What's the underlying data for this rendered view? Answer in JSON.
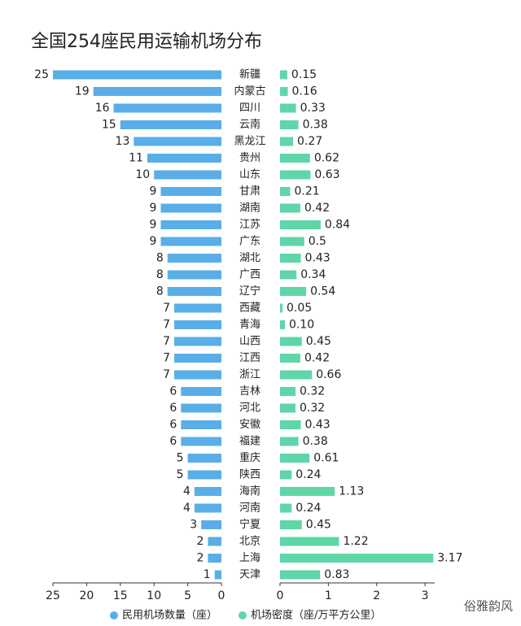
{
  "chart_data": [
    {
      "type": "bar",
      "title": "全国254座民用运输机场分布",
      "x_reversed": true,
      "categories": [
        "新疆",
        "内蒙古",
        "四川",
        "云南",
        "黑龙江",
        "贵州",
        "山东",
        "甘肃",
        "湖南",
        "江苏",
        "广东",
        "湖北",
        "广西",
        "辽宁",
        "西藏",
        "青海",
        "山西",
        "江西",
        "浙江",
        "吉林",
        "河北",
        "安徽",
        "福建",
        "重庆",
        "陕西",
        "海南",
        "河南",
        "宁夏",
        "北京",
        "上海",
        "天津"
      ],
      "series": [
        {
          "name": "民用机场数量（座）",
          "color": "#5aaee8",
          "values": [
            25,
            19,
            16,
            15,
            13,
            11,
            10,
            9,
            9,
            9,
            9,
            8,
            8,
            8,
            7,
            7,
            7,
            7,
            7,
            6,
            6,
            6,
            6,
            5,
            5,
            4,
            4,
            3,
            2,
            2,
            1
          ]
        }
      ],
      "xlim": [
        0,
        25
      ],
      "xticks": [
        25,
        20,
        15,
        10,
        5,
        0
      ]
    },
    {
      "type": "bar",
      "series": [
        {
          "name": "机场密度（座/万平方公里）",
          "color": "#5fd6a8",
          "values": [
            0.15,
            0.16,
            0.33,
            0.38,
            0.27,
            0.62,
            0.63,
            0.21,
            0.42,
            0.84,
            0.5,
            0.43,
            0.34,
            0.54,
            0.05,
            0.1,
            0.45,
            0.42,
            0.66,
            0.32,
            0.32,
            0.43,
            0.38,
            0.61,
            0.24,
            1.13,
            0.24,
            0.45,
            1.22,
            3.17,
            0.83
          ],
          "value_labels": [
            "0.15",
            "0.16",
            "0.33",
            "0.38",
            "0.27",
            "0.62",
            "0.63",
            "0.21",
            "0.42",
            "0.84",
            "0.5",
            "0.43",
            "0.34",
            "0.54",
            "0.05",
            "0.10",
            "0.45",
            "0.42",
            "0.66",
            "0.32",
            "0.32",
            "0.43",
            "0.38",
            "0.61",
            "0.24",
            "1.13",
            "0.24",
            "0.45",
            "1.22",
            "3.17",
            "0.83"
          ]
        }
      ],
      "xlim": [
        0,
        3.2
      ],
      "xticks": [
        0,
        1,
        2,
        3
      ]
    }
  ],
  "watermark": "俗雅韵风"
}
